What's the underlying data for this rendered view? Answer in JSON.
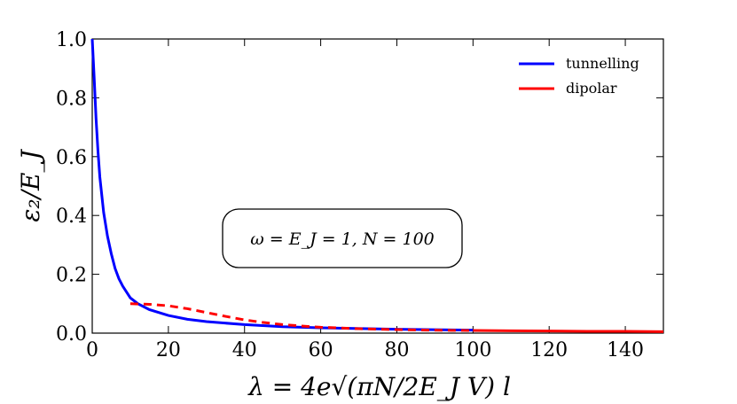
{
  "chart_data": {
    "type": "line",
    "title": "",
    "xlabel": "λ = 4e√(πN/2E_J V) l",
    "ylabel": "ε₂/E_J",
    "xlim": [
      0,
      150
    ],
    "ylim": [
      0,
      1.0
    ],
    "x_ticks": [
      0,
      20,
      40,
      60,
      80,
      100,
      120,
      140
    ],
    "x_tick_labels": [
      "0",
      "20",
      "40",
      "60",
      "80",
      "100",
      "120",
      "140"
    ],
    "y_ticks": [
      0.0,
      0.2,
      0.4,
      0.6,
      0.8,
      1.0
    ],
    "y_tick_labels": [
      "0.0",
      "0.2",
      "0.4",
      "0.6",
      "0.8",
      "1.0"
    ],
    "grid": false,
    "legend_position": "top-right",
    "annotation": "ω = E_J = 1, N = 100",
    "series": [
      {
        "name": "tunnelling",
        "color": "#0000ff",
        "style": "solid",
        "x": [
          0,
          0.5,
          1,
          1.5,
          2,
          3,
          4,
          5,
          6,
          7,
          8,
          10,
          12,
          15,
          20,
          25,
          30,
          40,
          50,
          60,
          80,
          100
        ],
        "y": [
          1.0,
          0.87,
          0.73,
          0.62,
          0.53,
          0.41,
          0.33,
          0.27,
          0.22,
          0.185,
          0.16,
          0.12,
          0.1,
          0.08,
          0.06,
          0.047,
          0.039,
          0.029,
          0.022,
          0.018,
          0.013,
          0.01
        ]
      },
      {
        "name": "dipolar",
        "color": "#ff0000",
        "style": "dashed-then-solid",
        "x": [
          10,
          15,
          20,
          25,
          30,
          35,
          40,
          45,
          50,
          55,
          60,
          70,
          80,
          90,
          100,
          110,
          120,
          130,
          140,
          150
        ],
        "y": [
          0.1,
          0.098,
          0.093,
          0.083,
          0.07,
          0.057,
          0.045,
          0.036,
          0.029,
          0.024,
          0.02,
          0.015,
          0.012,
          0.01,
          0.009,
          0.008,
          0.007,
          0.006,
          0.006,
          0.005
        ]
      }
    ]
  }
}
